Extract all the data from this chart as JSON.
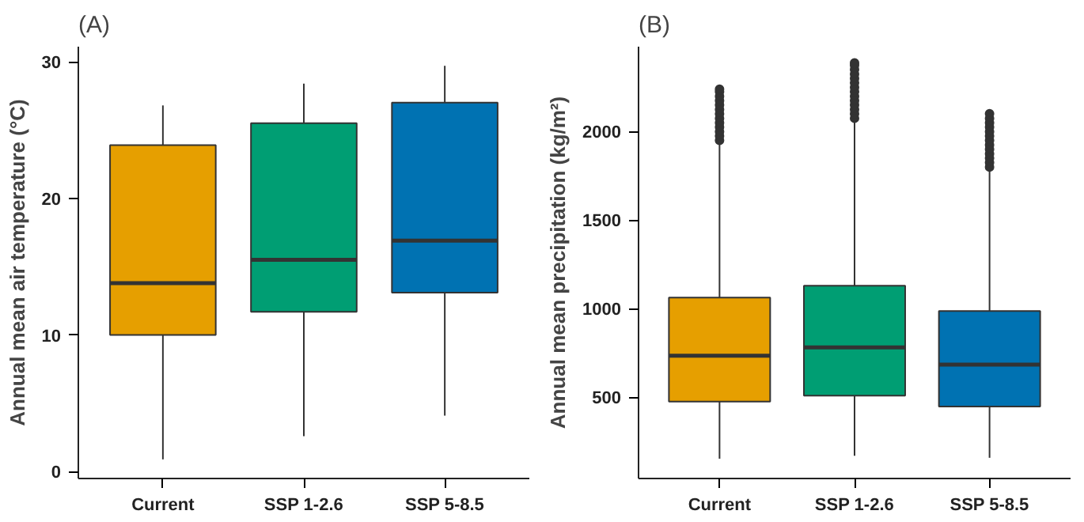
{
  "chart_data": [
    {
      "type": "box",
      "title": "(A)",
      "ylabel": "Annual mean air temperature (°C)",
      "categories": [
        "Current",
        "SSP 1-2.6",
        "SSP 5-8.5"
      ],
      "colors": [
        "#e69f00",
        "#009e73",
        "#0072b2"
      ],
      "boxes": [
        {
          "low": 0.9,
          "q1": 10.0,
          "median": 13.8,
          "q3": 23.9,
          "high": 26.8
        },
        {
          "low": 2.6,
          "q1": 11.7,
          "median": 15.5,
          "q3": 25.5,
          "high": 28.4
        },
        {
          "low": 4.1,
          "q1": 13.1,
          "median": 16.9,
          "q3": 27.0,
          "high": 29.7
        }
      ],
      "ylim": [
        -0.5,
        31.1
      ],
      "yticks": [
        0,
        10,
        20,
        30
      ]
    },
    {
      "type": "box",
      "title": "(B)",
      "ylabel": "Annual mean precipitation (kg/m²)",
      "categories": [
        "Current",
        "SSP 1-2.6",
        "SSP 5-8.5"
      ],
      "colors": [
        "#e69f00",
        "#009e73",
        "#0072b2"
      ],
      "boxes": [
        {
          "low": 152,
          "q1": 475,
          "median": 734,
          "q3": 1062,
          "high": 1928,
          "outliers": [
            1950,
            1975,
            2000,
            2025,
            2050,
            2075,
            2100,
            2125,
            2150,
            2175,
            2200,
            2225,
            2240
          ]
        },
        {
          "low": 169,
          "q1": 508,
          "median": 781,
          "q3": 1129,
          "high": 2051,
          "outliers": [
            2075,
            2100,
            2125,
            2150,
            2175,
            2200,
            2225,
            2250,
            2275,
            2300,
            2325,
            2350,
            2375,
            2388
          ]
        },
        {
          "low": 157,
          "q1": 447,
          "median": 683,
          "q3": 986,
          "high": 1781,
          "outliers": [
            1800,
            1825,
            1850,
            1875,
            1900,
            1925,
            1950,
            1975,
            2000,
            2025,
            2050,
            2075,
            2101
          ]
        }
      ],
      "ylim": [
        40,
        2480
      ],
      "yticks": [
        500,
        1000,
        1500,
        2000
      ]
    }
  ]
}
